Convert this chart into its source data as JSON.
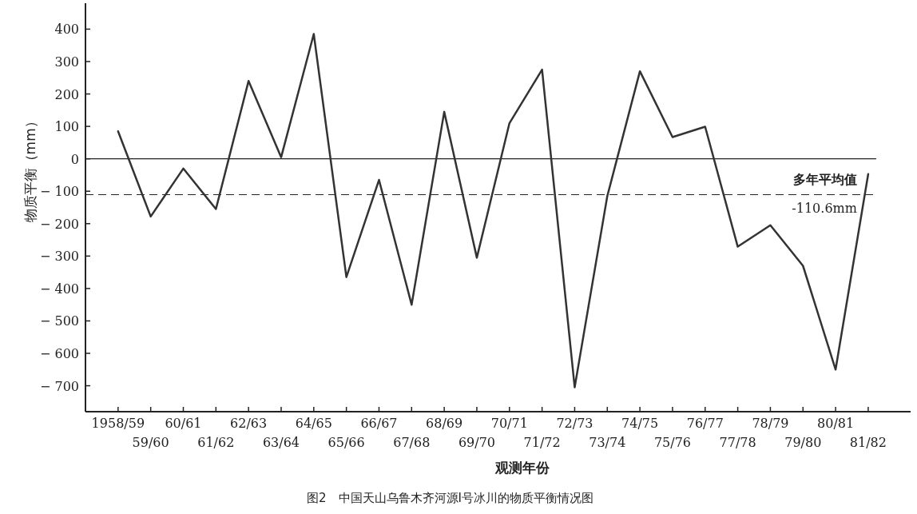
{
  "chart_data": {
    "type": "line",
    "title": "图2　中国天山乌鲁木齐河源Ⅰ号冰川的物质平衡情况图",
    "xlabel": "观测年份",
    "ylabel": "物质平衡（mm）",
    "categories": [
      "1958/59",
      "59/60",
      "60/61",
      "61/62",
      "62/63",
      "63/64",
      "64/65",
      "65/66",
      "66/67",
      "67/68",
      "68/69",
      "69/70",
      "70/71",
      "71/72",
      "72/73",
      "73/74",
      "74/75",
      "75/76",
      "76/77",
      "77/78",
      "78/79",
      "79/80",
      "80/81",
      "81/82"
    ],
    "series": [
      {
        "color": "#333333",
        "values": [
          85,
          -178,
          -30,
          -155,
          240,
          5,
          385,
          -365,
          -65,
          -450,
          145,
          -305,
          110,
          275,
          -705,
          -115,
          270,
          67,
          99,
          -271,
          -205,
          -330,
          -650,
          -47
        ]
      }
    ],
    "ylim": [
      -780,
      480
    ],
    "yticks": [
      -700,
      -600,
      -500,
      -400,
      -300,
      -200,
      -100,
      0,
      100,
      200,
      300,
      400
    ],
    "ref_lines": [
      {
        "axis": "y",
        "value": 0,
        "line_style": "solid"
      },
      {
        "axis": "y",
        "value": -110.6,
        "label": "多年平均值 -110.6mm",
        "line_style": "dashed"
      }
    ],
    "line_style": "solid"
  }
}
